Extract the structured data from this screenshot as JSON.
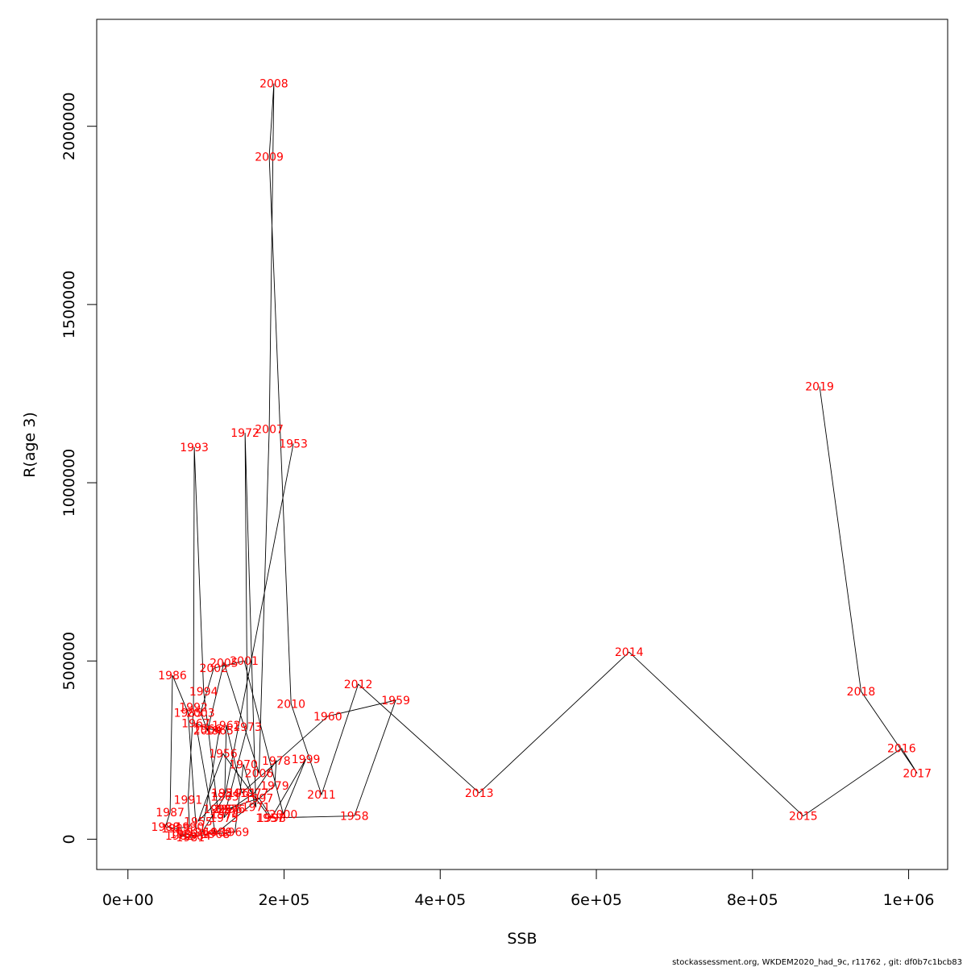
{
  "chart_data": {
    "type": "line",
    "xlabel": "SSB",
    "ylabel": "R(age 3)",
    "xlim": [
      -40000,
      1050000
    ],
    "ylim": [
      -85000,
      2300000
    ],
    "x_ticks": [
      0,
      200000,
      400000,
      600000,
      800000,
      1000000
    ],
    "x_tick_labels": [
      "0e+00",
      "2e+05",
      "4e+05",
      "6e+05",
      "8e+05",
      "1e+06"
    ],
    "y_ticks": [
      0,
      500000,
      1000000,
      1500000,
      2000000
    ],
    "y_tick_labels": [
      "0",
      "500000",
      "1000000",
      "1500000",
      "2000000"
    ],
    "grid": false,
    "line_color": "#000000",
    "label_color": "#ff0000",
    "points": [
      {
        "year": "1953",
        "ssb": 212000,
        "r": 1110000
      },
      {
        "year": "1954",
        "ssb": 125000,
        "r": 130000
      },
      {
        "year": "1955",
        "ssb": 90000,
        "r": 50000
      },
      {
        "year": "1956",
        "ssb": 122000,
        "r": 240000
      },
      {
        "year": "1957",
        "ssb": 182000,
        "r": 60000
      },
      {
        "year": "1958",
        "ssb": 290000,
        "r": 65000
      },
      {
        "year": "1959",
        "ssb": 343000,
        "r": 390000
      },
      {
        "year": "1960",
        "ssb": 256000,
        "r": 345000
      },
      {
        "year": "1961",
        "ssb": 146000,
        "r": 130000
      },
      {
        "year": "1962",
        "ssb": 126000,
        "r": 320000
      },
      {
        "year": "1963",
        "ssb": 124000,
        "r": 120000
      },
      {
        "year": "1964",
        "ssb": 95000,
        "r": 20000
      },
      {
        "year": "1965",
        "ssb": 117000,
        "r": 305000
      },
      {
        "year": "1966",
        "ssb": 102000,
        "r": 310000
      },
      {
        "year": "1967",
        "ssb": 87000,
        "r": 325000
      },
      {
        "year": "1968",
        "ssb": 112000,
        "r": 15000
      },
      {
        "year": "1969",
        "ssb": 137000,
        "r": 20000
      },
      {
        "year": "1970",
        "ssb": 148000,
        "r": 210000
      },
      {
        "year": "1971",
        "ssb": 164000,
        "r": 90000
      },
      {
        "year": "1972",
        "ssb": 150000,
        "r": 1140000
      },
      {
        "year": "1973",
        "ssb": 153000,
        "r": 315000
      },
      {
        "year": "1974",
        "ssb": 124000,
        "r": 70000
      },
      {
        "year": "1975",
        "ssb": 123000,
        "r": 60000
      },
      {
        "year": "1976",
        "ssb": 132000,
        "r": 85000
      },
      {
        "year": "1977",
        "ssb": 162000,
        "r": 130000
      },
      {
        "year": "1978",
        "ssb": 190000,
        "r": 220000
      },
      {
        "year": "1979",
        "ssb": 188000,
        "r": 150000
      },
      {
        "year": "1980",
        "ssb": 115000,
        "r": 20000
      },
      {
        "year": "1981",
        "ssb": 80000,
        "r": 5000
      },
      {
        "year": "1982",
        "ssb": 66000,
        "r": 10000
      },
      {
        "year": "1983",
        "ssb": 72000,
        "r": 15000
      },
      {
        "year": "1984",
        "ssb": 88000,
        "r": 10000
      },
      {
        "year": "1985",
        "ssb": 77000,
        "r": 355000
      },
      {
        "year": "1986",
        "ssb": 57000,
        "r": 460000
      },
      {
        "year": "1987",
        "ssb": 54000,
        "r": 75000
      },
      {
        "year": "1988",
        "ssb": 48000,
        "r": 35000
      },
      {
        "year": "1989",
        "ssb": 61000,
        "r": 30000
      },
      {
        "year": "1990",
        "ssb": 79000,
        "r": 35000
      },
      {
        "year": "1991",
        "ssb": 77000,
        "r": 110000
      },
      {
        "year": "1992",
        "ssb": 84000,
        "r": 370000
      },
      {
        "year": "1993",
        "ssb": 85000,
        "r": 1100000
      },
      {
        "year": "1994",
        "ssb": 97000,
        "r": 415000
      },
      {
        "year": "1995",
        "ssb": 115000,
        "r": 85000
      },
      {
        "year": "1996",
        "ssb": 128000,
        "r": 85000
      },
      {
        "year": "1997",
        "ssb": 168000,
        "r": 115000
      },
      {
        "year": "1998",
        "ssb": 184000,
        "r": 60000
      },
      {
        "year": "1999",
        "ssb": 228000,
        "r": 225000
      },
      {
        "year": "2000",
        "ssb": 199000,
        "r": 70000
      },
      {
        "year": "2001",
        "ssb": 149000,
        "r": 500000
      },
      {
        "year": "2002",
        "ssb": 110000,
        "r": 480000
      },
      {
        "year": "2003",
        "ssb": 93000,
        "r": 355000
      },
      {
        "year": "2004",
        "ssb": 102000,
        "r": 305000
      },
      {
        "year": "2005",
        "ssb": 123000,
        "r": 495000
      },
      {
        "year": "2006",
        "ssb": 168000,
        "r": 185000
      },
      {
        "year": "2007",
        "ssb": 181000,
        "r": 1150000
      },
      {
        "year": "2008",
        "ssb": 187000,
        "r": 2120000
      },
      {
        "year": "2009",
        "ssb": 181000,
        "r": 1915000
      },
      {
        "year": "2010",
        "ssb": 209000,
        "r": 380000
      },
      {
        "year": "2011",
        "ssb": 248000,
        "r": 125000
      },
      {
        "year": "2012",
        "ssb": 295000,
        "r": 435000
      },
      {
        "year": "2013",
        "ssb": 450000,
        "r": 130000
      },
      {
        "year": "2014",
        "ssb": 642000,
        "r": 525000
      },
      {
        "year": "2015",
        "ssb": 865000,
        "r": 65000
      },
      {
        "year": "2016",
        "ssb": 991000,
        "r": 255000
      },
      {
        "year": "2017",
        "ssb": 1011000,
        "r": 185000
      },
      {
        "year": "2018",
        "ssb": 939000,
        "r": 415000
      },
      {
        "year": "2019",
        "ssb": 886000,
        "r": 1270000
      }
    ]
  },
  "footer": "stockassessment.org, WKDEM2020_had_9c, r11762 , git: df0b7c1bcb83"
}
